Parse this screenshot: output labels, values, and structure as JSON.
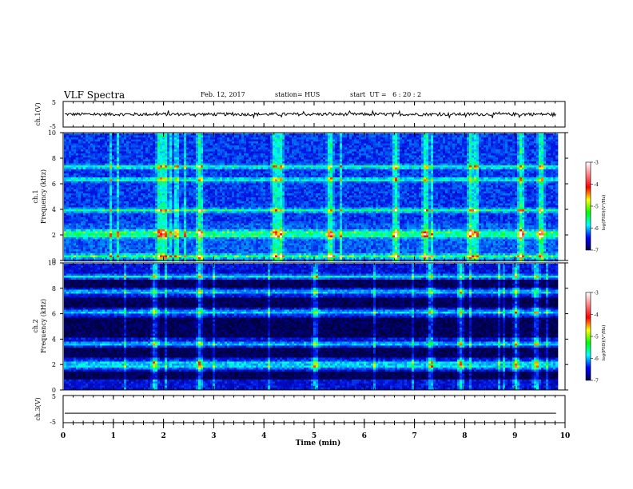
{
  "header": {
    "title": "VLF Spectra",
    "date": "Feb. 12, 2017",
    "station": "station= HUS",
    "start": "start  UT =   6 : 20 : 2"
  },
  "colorbar": {
    "label": "log(PSD)(V²/Hz)",
    "ticks": [
      "-3",
      "-4",
      "-5",
      "-6",
      "-7"
    ],
    "colors": [
      "#ffffff",
      "#ff8080",
      "#ff0000",
      "#ffff00",
      "#00ff00",
      "#00ffff",
      "#0000ff",
      "#000050"
    ]
  },
  "chart_data": [
    {
      "type": "line",
      "panel": "ch1-waveform",
      "ylabel": "ch.1(V)",
      "ylim": [
        -5,
        5
      ],
      "yticks": [
        "5",
        "-5"
      ],
      "trace_level": 0,
      "trace_noise_amplitude": 0.6
    },
    {
      "type": "heatmap",
      "panel": "ch1-spectrogram",
      "ylabel_line1": "ch.1",
      "ylabel_line2": "Frequency (kHz)",
      "ylim": [
        0,
        10
      ],
      "yticks": [
        "0",
        "2",
        "4",
        "6",
        "8",
        "10"
      ],
      "zlim": [
        -7,
        -3
      ],
      "bright_bands_khz": [
        0.4,
        2.0,
        2.3,
        4.0,
        6.4,
        7.4
      ],
      "burst_times_min": [
        1.9,
        2.0,
        2.7,
        4.2,
        4.3,
        5.3,
        6.6,
        7.2,
        8.1,
        9.1,
        9.5
      ]
    },
    {
      "type": "heatmap",
      "panel": "ch2-spectrogram",
      "ylabel_line1": "ch.2",
      "ylabel_line2": "Frequency (kHz)",
      "ylim": [
        0,
        10
      ],
      "yticks": [
        "0",
        "2",
        "4",
        "6",
        "8",
        "10"
      ],
      "zlim": [
        -7,
        -3
      ],
      "bright_bands_khz": [
        1.9,
        2.2,
        3.7,
        6.2,
        7.8,
        9.0
      ],
      "quiet_bands_khz": [
        [
          0.9,
          1.6
        ],
        [
          2.6,
          3.4
        ],
        [
          4.2,
          5.8
        ],
        [
          6.6,
          7.4
        ],
        [
          8.2,
          8.8
        ]
      ],
      "burst_times_min": [
        1.8,
        2.7,
        5.0,
        7.3,
        7.9,
        9.0,
        9.4
      ]
    },
    {
      "type": "line",
      "panel": "ch3-waveform",
      "ylabel": "ch.3(V)",
      "ylim": [
        -5,
        5
      ],
      "yticks": [
        "5",
        "-5"
      ],
      "trace_level": -1.5,
      "trace_noise_amplitude": 0
    }
  ],
  "xaxis": {
    "label": "Time (min)",
    "xlim": [
      0,
      10
    ],
    "ticks": [
      "0",
      "1",
      "2",
      "3",
      "4",
      "5",
      "6",
      "7",
      "8",
      "9",
      "10"
    ],
    "data_end_min": 9.82
  }
}
